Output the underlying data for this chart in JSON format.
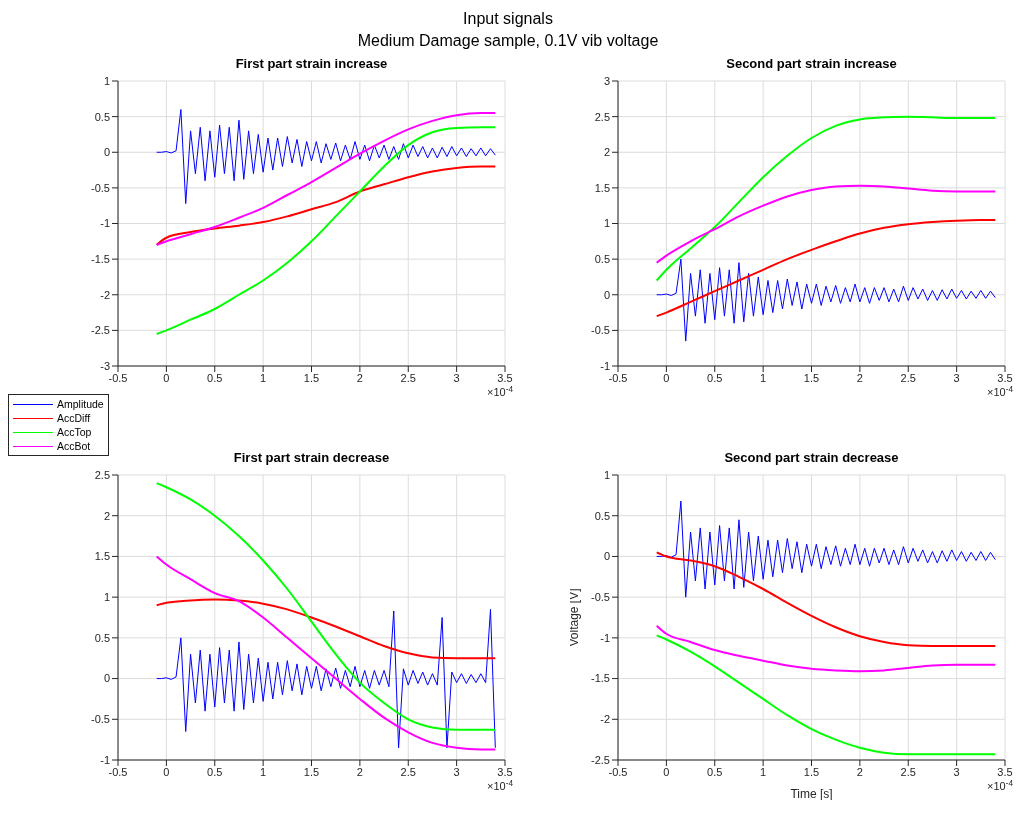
{
  "chart_data": [
    {
      "type": "line",
      "title": "First part strain increase",
      "annotations": [
        "Input signals",
        "Medium Damage sample, 0.1V vib voltage",
        "×10$^{-4}$"
      ],
      "x": [
        -0.1,
        0,
        0.25,
        0.5,
        0.75,
        1,
        1.25,
        1.5,
        1.75,
        2,
        2.25,
        2.5,
        2.75,
        3,
        3.25,
        3.4
      ],
      "xlim": [
        -0.5,
        3.5
      ],
      "xticks": [
        -0.5,
        0,
        0.5,
        1,
        1.5,
        2,
        2.5,
        3,
        3.5
      ],
      "ylim": [
        -3,
        1
      ],
      "yticks": [
        -3,
        -2.5,
        -2,
        -1.5,
        -1,
        -0.5,
        0,
        0.5,
        1
      ],
      "grid": true,
      "marker": "none",
      "legend": "bottom left",
      "series": [
        {
          "name": "Amplitude",
          "color": "#0000ff",
          "x": [
            -0.1,
            -0.05,
            0,
            0.05,
            0.1,
            0.15,
            0.2,
            0.25,
            0.3,
            0.35,
            0.4,
            0.45,
            0.5,
            0.55,
            0.6,
            0.65,
            0.7,
            0.75,
            0.8,
            0.85,
            0.9,
            0.95,
            1,
            1.05,
            1.1,
            1.15,
            1.2,
            1.25,
            1.3,
            1.35,
            1.4,
            1.45,
            1.5,
            1.55,
            1.6,
            1.65,
            1.7,
            1.75,
            1.8,
            1.85,
            1.9,
            1.95,
            2,
            2.05,
            2.1,
            2.15,
            2.2,
            2.25,
            2.3,
            2.35,
            2.4,
            2.45,
            2.5,
            2.55,
            2.6,
            2.65,
            2.7,
            2.75,
            2.8,
            2.85,
            2.9,
            2.95,
            3,
            3.05,
            3.1,
            3.15,
            3.2,
            3.25,
            3.3,
            3.35,
            3.4
          ],
          "values": [
            0,
            0,
            0.01,
            -0.01,
            0.02,
            0.6,
            -0.72,
            0.3,
            -0.3,
            0.35,
            -0.4,
            0.3,
            -0.35,
            0.38,
            -0.3,
            0.35,
            -0.4,
            0.45,
            -0.38,
            0.3,
            -0.3,
            0.25,
            -0.28,
            0.2,
            -0.25,
            0.2,
            -0.2,
            0.22,
            -0.15,
            0.18,
            -0.2,
            0.15,
            -0.12,
            0.15,
            -0.15,
            0.12,
            -0.1,
            0.13,
            -0.12,
            0.1,
            -0.1,
            0.15,
            -0.1,
            0.1,
            -0.12,
            0.1,
            -0.08,
            0.1,
            -0.1,
            0.08,
            -0.1,
            0.12,
            -0.08,
            0.1,
            -0.06,
            0.08,
            -0.08,
            0.06,
            -0.08,
            0.07,
            -0.06,
            0.08,
            -0.05,
            0.06,
            -0.06,
            0.05,
            -0.05,
            0.06,
            -0.05,
            0.05,
            -0.04
          ]
        },
        {
          "name": "AccDiff",
          "color": "#ff0000",
          "values": [
            -1.3,
            -1.2,
            -1.12,
            -1.07,
            -1.03,
            -0.98,
            -0.9,
            -0.8,
            -0.7,
            -0.55,
            -0.45,
            -0.35,
            -0.27,
            -0.22,
            -0.2,
            -0.2
          ]
        },
        {
          "name": "AccTop",
          "color": "#00ff00",
          "values": [
            -2.55,
            -2.5,
            -2.35,
            -2.2,
            -2,
            -1.8,
            -1.55,
            -1.25,
            -0.9,
            -0.55,
            -0.2,
            0.1,
            0.28,
            0.34,
            0.35,
            0.35
          ]
        },
        {
          "name": "AccBot",
          "color": "#ff00ff",
          "values": [
            -1.3,
            -1.25,
            -1.15,
            -1.05,
            -0.92,
            -0.78,
            -0.6,
            -0.42,
            -0.22,
            -0.02,
            0.16,
            0.32,
            0.44,
            0.52,
            0.55,
            0.55
          ]
        }
      ]
    },
    {
      "type": "line",
      "title": "Second part strain increase",
      "annotations": [
        "×10$^{-4}$"
      ],
      "x": [
        -0.1,
        0,
        0.25,
        0.5,
        0.75,
        1,
        1.25,
        1.5,
        1.75,
        2,
        2.25,
        2.5,
        2.75,
        3,
        3.25,
        3.4
      ],
      "xlim": [
        -0.5,
        3.5
      ],
      "xticks": [
        -0.5,
        0,
        0.5,
        1,
        1.5,
        2,
        2.5,
        3,
        3.5
      ],
      "ylim": [
        -1,
        3
      ],
      "yticks": [
        -1,
        -0.5,
        0,
        0.5,
        1,
        1.5,
        2,
        2.5,
        3
      ],
      "grid": true,
      "marker": "none",
      "series": [
        {
          "color": "#0000ff",
          "x": [
            -0.1,
            -0.05,
            0,
            0.05,
            0.1,
            0.15,
            0.2,
            0.25,
            0.3,
            0.35,
            0.4,
            0.45,
            0.5,
            0.55,
            0.6,
            0.65,
            0.7,
            0.75,
            0.8,
            0.85,
            0.9,
            0.95,
            1,
            1.05,
            1.1,
            1.15,
            1.2,
            1.25,
            1.3,
            1.35,
            1.4,
            1.45,
            1.5,
            1.55,
            1.6,
            1.65,
            1.7,
            1.75,
            1.8,
            1.85,
            1.9,
            1.95,
            2,
            2.05,
            2.1,
            2.15,
            2.2,
            2.25,
            2.3,
            2.35,
            2.4,
            2.45,
            2.5,
            2.55,
            2.6,
            2.65,
            2.7,
            2.75,
            2.8,
            2.85,
            2.9,
            2.95,
            3,
            3.05,
            3.1,
            3.15,
            3.2,
            3.25,
            3.3,
            3.35,
            3.4
          ],
          "values": [
            0,
            0,
            0.01,
            -0.01,
            0.02,
            0.5,
            -0.65,
            0.3,
            -0.3,
            0.35,
            -0.4,
            0.3,
            -0.35,
            0.38,
            -0.3,
            0.35,
            -0.4,
            0.45,
            -0.38,
            0.3,
            -0.3,
            0.25,
            -0.28,
            0.2,
            -0.25,
            0.2,
            -0.2,
            0.22,
            -0.15,
            0.18,
            -0.2,
            0.15,
            -0.12,
            0.15,
            -0.15,
            0.12,
            -0.1,
            0.13,
            -0.12,
            0.1,
            -0.1,
            0.15,
            -0.1,
            0.1,
            -0.12,
            0.1,
            -0.08,
            0.1,
            -0.1,
            0.08,
            -0.1,
            0.12,
            -0.08,
            0.1,
            -0.06,
            0.08,
            -0.08,
            0.06,
            -0.08,
            0.07,
            -0.06,
            0.08,
            -0.05,
            0.06,
            -0.06,
            0.05,
            -0.05,
            0.06,
            -0.05,
            0.05,
            -0.04
          ]
        },
        {
          "color": "#ff0000",
          "values": [
            -0.3,
            -0.25,
            -0.1,
            0.05,
            0.2,
            0.35,
            0.5,
            0.63,
            0.75,
            0.86,
            0.94,
            0.99,
            1.02,
            1.04,
            1.05,
            1.05
          ]
        },
        {
          "color": "#00ff00",
          "values": [
            0.2,
            0.35,
            0.65,
            0.95,
            1.3,
            1.65,
            1.95,
            2.2,
            2.37,
            2.46,
            2.49,
            2.5,
            2.49,
            2.48,
            2.48,
            2.48
          ]
        },
        {
          "color": "#ff00ff",
          "values": [
            0.45,
            0.55,
            0.75,
            0.92,
            1.1,
            1.25,
            1.38,
            1.47,
            1.52,
            1.53,
            1.52,
            1.49,
            1.46,
            1.45,
            1.45,
            1.45
          ]
        }
      ]
    },
    {
      "type": "line",
      "title": "First part strain decrease",
      "annotations": [
        "×10$^{-4}$"
      ],
      "x": [
        -0.1,
        0,
        0.25,
        0.5,
        0.75,
        1,
        1.25,
        1.5,
        1.75,
        2,
        2.25,
        2.5,
        2.75,
        3,
        3.25,
        3.4
      ],
      "xlim": [
        -0.5,
        3.5
      ],
      "xticks": [
        -0.5,
        0,
        0.5,
        1,
        1.5,
        2,
        2.5,
        3,
        3.5
      ],
      "ylim": [
        -1,
        2.5
      ],
      "yticks": [
        -1,
        -0.5,
        0,
        0.5,
        1,
        1.5,
        2,
        2.5
      ],
      "grid": true,
      "marker": "none",
      "series": [
        {
          "color": "#0000ff",
          "x": [
            -0.1,
            -0.05,
            0,
            0.05,
            0.1,
            0.15,
            0.2,
            0.25,
            0.3,
            0.35,
            0.4,
            0.45,
            0.5,
            0.55,
            0.6,
            0.65,
            0.7,
            0.75,
            0.8,
            0.85,
            0.9,
            0.95,
            1,
            1.05,
            1.1,
            1.15,
            1.2,
            1.25,
            1.3,
            1.35,
            1.4,
            1.45,
            1.5,
            1.55,
            1.6,
            1.65,
            1.7,
            1.75,
            1.8,
            1.85,
            1.9,
            1.95,
            2,
            2.05,
            2.1,
            2.15,
            2.2,
            2.25,
            2.3,
            2.35,
            2.4,
            2.45,
            2.5,
            2.55,
            2.6,
            2.65,
            2.7,
            2.75,
            2.8,
            2.85,
            2.9,
            2.95,
            3,
            3.05,
            3.1,
            3.15,
            3.2,
            3.25,
            3.3,
            3.35,
            3.4
          ],
          "values": [
            0,
            0,
            0.01,
            -0.01,
            0.02,
            0.5,
            -0.65,
            0.3,
            -0.3,
            0.35,
            -0.4,
            0.3,
            -0.35,
            0.38,
            -0.3,
            0.35,
            -0.4,
            0.45,
            -0.38,
            0.3,
            -0.3,
            0.25,
            -0.28,
            0.2,
            -0.25,
            0.2,
            -0.2,
            0.22,
            -0.15,
            0.18,
            -0.2,
            0.15,
            -0.12,
            0.15,
            -0.15,
            0.12,
            -0.1,
            0.13,
            -0.12,
            0.1,
            -0.1,
            0.15,
            -0.1,
            0.1,
            -0.12,
            0.1,
            -0.08,
            0.1,
            -0.1,
            0.83,
            -0.85,
            0.12,
            -0.08,
            0.1,
            -0.06,
            0.08,
            -0.08,
            0.06,
            -0.08,
            0.75,
            -0.85,
            0.08,
            -0.05,
            0.06,
            -0.06,
            0.05,
            -0.05,
            0.06,
            -0.05,
            0.85,
            -0.85
          ]
        },
        {
          "color": "#ff0000",
          "values": [
            0.9,
            0.93,
            0.96,
            0.97,
            0.96,
            0.92,
            0.85,
            0.75,
            0.64,
            0.52,
            0.4,
            0.31,
            0.26,
            0.25,
            0.25,
            0.25
          ]
        },
        {
          "color": "#00ff00",
          "values": [
            2.4,
            2.35,
            2.2,
            2,
            1.75,
            1.45,
            1.1,
            0.7,
            0.3,
            -0.05,
            -0.3,
            -0.5,
            -0.6,
            -0.63,
            -0.63,
            -0.63
          ]
        },
        {
          "color": "#ff00ff",
          "values": [
            1.5,
            1.4,
            1.22,
            1.05,
            0.95,
            0.75,
            0.5,
            0.25,
            0,
            -0.25,
            -0.48,
            -0.66,
            -0.79,
            -0.85,
            -0.87,
            -0.87
          ]
        }
      ]
    },
    {
      "type": "line",
      "title": "Second part strain decrease",
      "xlabel": "Time [s]",
      "ylabel": "Voltage [V]",
      "annotations": [
        "×10$^{-4}$"
      ],
      "x": [
        -0.1,
        0,
        0.25,
        0.5,
        0.75,
        1,
        1.25,
        1.5,
        1.75,
        2,
        2.25,
        2.5,
        2.75,
        3,
        3.25,
        3.4
      ],
      "xlim": [
        -0.5,
        3.5
      ],
      "xticks": [
        -0.5,
        0,
        0.5,
        1,
        1.5,
        2,
        2.5,
        3,
        3.5
      ],
      "ylim": [
        -2.5,
        1
      ],
      "yticks": [
        -2.5,
        -2,
        -1.5,
        -1,
        -0.5,
        0,
        0.5,
        1
      ],
      "grid": true,
      "marker": "none",
      "series": [
        {
          "color": "#0000ff",
          "x": [
            -0.1,
            -0.05,
            0,
            0.05,
            0.1,
            0.15,
            0.2,
            0.25,
            0.3,
            0.35,
            0.4,
            0.45,
            0.5,
            0.55,
            0.6,
            0.65,
            0.7,
            0.75,
            0.8,
            0.85,
            0.9,
            0.95,
            1,
            1.05,
            1.1,
            1.15,
            1.2,
            1.25,
            1.3,
            1.35,
            1.4,
            1.45,
            1.5,
            1.55,
            1.6,
            1.65,
            1.7,
            1.75,
            1.8,
            1.85,
            1.9,
            1.95,
            2,
            2.05,
            2.1,
            2.15,
            2.2,
            2.25,
            2.3,
            2.35,
            2.4,
            2.45,
            2.5,
            2.55,
            2.6,
            2.65,
            2.7,
            2.75,
            2.8,
            2.85,
            2.9,
            2.95,
            3,
            3.05,
            3.1,
            3.15,
            3.2,
            3.25,
            3.3,
            3.35,
            3.4
          ],
          "values": [
            0,
            0,
            0.01,
            -0.01,
            0.02,
            0.68,
            -0.5,
            0.3,
            -0.3,
            0.35,
            -0.4,
            0.3,
            -0.35,
            0.38,
            -0.3,
            0.35,
            -0.4,
            0.45,
            -0.38,
            0.3,
            -0.3,
            0.25,
            -0.28,
            0.2,
            -0.25,
            0.2,
            -0.2,
            0.22,
            -0.15,
            0.18,
            -0.2,
            0.15,
            -0.12,
            0.15,
            -0.15,
            0.12,
            -0.1,
            0.13,
            -0.12,
            0.1,
            -0.1,
            0.15,
            -0.1,
            0.1,
            -0.12,
            0.1,
            -0.08,
            0.1,
            -0.1,
            0.08,
            -0.1,
            0.12,
            -0.08,
            0.1,
            -0.06,
            0.08,
            -0.08,
            0.06,
            -0.08,
            0.07,
            -0.06,
            0.08,
            -0.05,
            0.06,
            -0.06,
            0.05,
            -0.05,
            0.06,
            -0.05,
            0.05,
            -0.04
          ]
        },
        {
          "color": "#ff0000",
          "values": [
            0.05,
            0,
            -0.05,
            -0.12,
            -0.25,
            -0.4,
            -0.57,
            -0.73,
            -0.87,
            -0.98,
            -1.05,
            -1.09,
            -1.1,
            -1.1,
            -1.1,
            -1.1
          ]
        },
        {
          "color": "#00ff00",
          "values": [
            -0.97,
            -1.02,
            -1.17,
            -1.35,
            -1.55,
            -1.75,
            -1.95,
            -2.12,
            -2.25,
            -2.35,
            -2.41,
            -2.43,
            -2.43,
            -2.43,
            -2.43,
            -2.43
          ]
        },
        {
          "color": "#ff00ff",
          "values": [
            -0.85,
            -0.95,
            -1.05,
            -1.15,
            -1.22,
            -1.28,
            -1.34,
            -1.38,
            -1.4,
            -1.41,
            -1.4,
            -1.37,
            -1.34,
            -1.33,
            -1.33,
            -1.33
          ]
        }
      ]
    }
  ]
}
